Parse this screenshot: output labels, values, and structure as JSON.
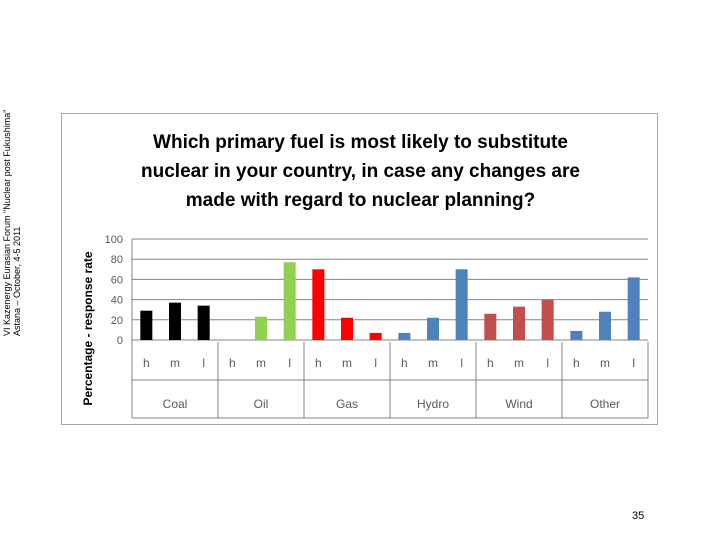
{
  "slide": {
    "side_note_line1": "VI Kazenergy Eurasian Forum \"Nuclear post Fukushima\"",
    "side_note_line2": "Astana – October, 4-5 2011",
    "page_number": "35"
  },
  "chart_data": {
    "type": "bar",
    "title_lines": [
      "Which primary fuel is most likely to substitute",
      "nuclear in your country, in case any changes are",
      "made with regard to nuclear planning?"
    ],
    "ylabel": "Percentage - response rate",
    "xlabel": "",
    "ylim": [
      0,
      100
    ],
    "yticks": [
      0,
      20,
      40,
      60,
      80,
      100
    ],
    "grid": true,
    "legend": "none",
    "groups": [
      {
        "name": "Coal",
        "color": "#000000"
      },
      {
        "name": "Oil",
        "color": "#92d050"
      },
      {
        "name": "Gas",
        "color": "#ff0000"
      },
      {
        "name": "Hydro",
        "color": "#4f81bd"
      },
      {
        "name": "Wind",
        "color": "#c0504d"
      },
      {
        "name": "Other",
        "color": "#4f81bd"
      }
    ],
    "subcategories": [
      "h",
      "m",
      "l"
    ],
    "values": [
      [
        29,
        37,
        34
      ],
      [
        0,
        23,
        77
      ],
      [
        70,
        22,
        7
      ],
      [
        7,
        22,
        70
      ],
      [
        26,
        33,
        40
      ],
      [
        9,
        28,
        62
      ]
    ]
  }
}
